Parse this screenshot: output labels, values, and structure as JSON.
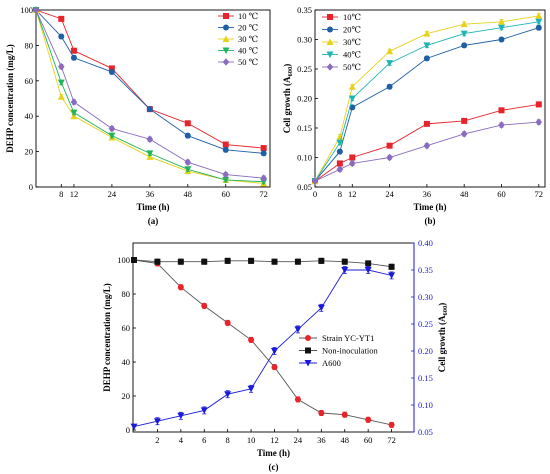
{
  "chart_data": [
    {
      "type": "line",
      "caption": "(a)",
      "xlabel": "Time (h)",
      "ylabel": "DEHP concentration (mg/L)",
      "x": [
        0,
        8,
        12,
        24,
        36,
        48,
        60,
        72
      ],
      "xticks": [
        "8",
        "12",
        "24",
        "36",
        "48",
        "60",
        "72"
      ],
      "ylim": [
        0,
        100
      ],
      "yticks": [
        "0",
        "20",
        "40",
        "60",
        "80",
        "100"
      ],
      "legend_position": "top-right",
      "series": [
        {
          "name": "10 ℃",
          "color": "#e8232a",
          "marker": "square",
          "values": [
            100,
            95,
            77,
            67,
            44,
            36,
            24,
            22
          ]
        },
        {
          "name": "20 ℃",
          "color": "#1f5fa6",
          "marker": "circle",
          "values": [
            100,
            85,
            73,
            65,
            44,
            29,
            21,
            19
          ]
        },
        {
          "name": "30 ℃",
          "color": "#e6d21a",
          "marker": "triangle-up",
          "values": [
            100,
            51,
            40,
            28,
            17,
            9,
            4,
            2
          ]
        },
        {
          "name": "40 ℃",
          "color": "#21b45a",
          "marker": "triangle-down",
          "values": [
            100,
            59,
            42,
            29,
            19,
            10,
            4,
            3
          ]
        },
        {
          "name": "50 ℃",
          "color": "#8a6bbf",
          "marker": "diamond",
          "values": [
            100,
            68,
            48,
            33,
            27,
            14,
            7,
            5
          ]
        }
      ]
    },
    {
      "type": "line",
      "caption": "(b)",
      "xlabel": "Time (h)",
      "ylabel": "Cell growth (A600)",
      "ylabel_main": "Cell growth (A",
      "ylabel_sub": "600",
      "ylabel_end": ")",
      "x": [
        0,
        8,
        12,
        24,
        36,
        48,
        60,
        72
      ],
      "xticks": [
        "0",
        "8",
        "12",
        "24",
        "36",
        "48",
        "60",
        "72"
      ],
      "ylim": [
        0.05,
        0.35
      ],
      "yticks": [
        "0.05",
        "0.10",
        "0.15",
        "0.20",
        "0.25",
        "0.30",
        "0.35"
      ],
      "legend_position": "top-left",
      "series": [
        {
          "name": "10℃",
          "color": "#e8232a",
          "marker": "square",
          "values": [
            0.06,
            0.09,
            0.1,
            0.12,
            0.157,
            0.162,
            0.18,
            0.19
          ]
        },
        {
          "name": "20℃",
          "color": "#1f5fa6",
          "marker": "circle",
          "values": [
            0.06,
            0.11,
            0.185,
            0.22,
            0.268,
            0.29,
            0.3,
            0.32
          ]
        },
        {
          "name": "30℃",
          "color": "#e6d21a",
          "marker": "triangle-up",
          "values": [
            0.06,
            0.135,
            0.22,
            0.28,
            0.31,
            0.326,
            0.33,
            0.34
          ]
        },
        {
          "name": "40℃",
          "color": "#21b4b4",
          "marker": "triangle-down",
          "values": [
            0.06,
            0.125,
            0.2,
            0.26,
            0.29,
            0.31,
            0.32,
            0.33
          ]
        },
        {
          "name": "50℃",
          "color": "#8a6bbf",
          "marker": "diamond",
          "values": [
            0.06,
            0.08,
            0.09,
            0.1,
            0.12,
            0.14,
            0.155,
            0.16
          ]
        }
      ]
    },
    {
      "type": "line",
      "caption": "(c)",
      "xlabel": "Time (h)",
      "ylabel": "DEHP concentration (mg/L)",
      "ylabel_right": "Cell growth (A600)",
      "ylabel_right_main": "Cell growth (A",
      "ylabel_right_sub": "600",
      "ylabel_right_end": ")",
      "x_categories": [
        "0",
        "2",
        "4",
        "6",
        "8",
        "10",
        "12",
        "24",
        "36",
        "48",
        "60",
        "72"
      ],
      "xticks": [
        "2",
        "4",
        "6",
        "8",
        "10",
        "12",
        "24",
        "36",
        "48",
        "60",
        "72"
      ],
      "ylim": [
        0,
        100
      ],
      "yticks": [
        "0",
        "20",
        "40",
        "60",
        "80",
        "100"
      ],
      "ylim_right": [
        0.05,
        0.4
      ],
      "yticks_right": [
        "0.05",
        "0.10",
        "0.15",
        "0.20",
        "0.25",
        "0.30",
        "0.35",
        "0.40"
      ],
      "legend_position": "center-right",
      "series": [
        {
          "name": "Strain YC-YT1",
          "axis": "left",
          "color": "#e8232a",
          "marker": "circle",
          "values": [
            100,
            98,
            84,
            73,
            63,
            53,
            37,
            18,
            10,
            9,
            6,
            3
          ]
        },
        {
          "name": "Non-inoculation",
          "axis": "left",
          "color": "#111111",
          "marker": "square",
          "values": [
            100,
            99,
            99,
            99,
            99.5,
            99.5,
            99,
            99,
            99.5,
            99,
            98,
            96
          ]
        },
        {
          "name": "A600",
          "axis": "right",
          "color": "#1a1adb",
          "marker": "triangle-down",
          "values": [
            0.06,
            0.07,
            0.08,
            0.09,
            0.12,
            0.13,
            0.2,
            0.24,
            0.28,
            0.35,
            0.35,
            0.34
          ]
        }
      ]
    }
  ]
}
